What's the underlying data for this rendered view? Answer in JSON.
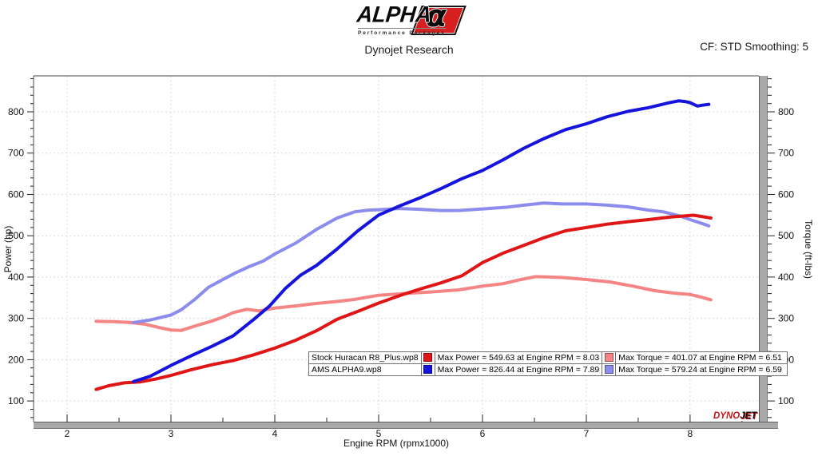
{
  "header": {
    "brand_name": "ALPHA",
    "brand_alpha_char": "α",
    "brand_tagline": "Performance Packages",
    "title": "Dynojet Research",
    "cf_label": "CF: STD Smoothing: 5"
  },
  "legend": {
    "rows": [
      {
        "name": "Stock Huracan R8_Plus.wp8",
        "power_color": "#e01515",
        "power_text": "Max Power = 549.63 at Engine RPM = 8.03",
        "torque_color": "#f58484",
        "torque_text": "Max Torque = 401.07 at Engine RPM = 6.51"
      },
      {
        "name": "AMS ALPHA9.wp8",
        "power_color": "#1414dd",
        "power_text": "Max Power = 826.44 at Engine RPM = 7.89",
        "torque_color": "#8c8cee",
        "torque_text": "Max Torque = 579.24 at Engine RPM = 6.59"
      }
    ]
  },
  "watermark": {
    "part1": "DYNO",
    "part2": "JET"
  },
  "chart_data": {
    "type": "line",
    "xlabel": "Engine RPM (rpmx1000)",
    "ylabel_left": "Power (hp)",
    "ylabel_right": "Torque (ft-lbs)",
    "x_ticks": [
      2,
      3,
      4,
      5,
      6,
      7,
      8
    ],
    "y_ticks": [
      100,
      200,
      300,
      400,
      500,
      600,
      700,
      800
    ],
    "x_minor_step": 0.5,
    "y_minor_step": 20,
    "xlim": [
      1.677,
      8.662
    ],
    "ylim": [
      50,
      887
    ],
    "grid": true,
    "legend_position": "bottom-center",
    "series": [
      {
        "name": "Stock Huracan R8_Plus.wp8 Torque (ft-lbs)",
        "color": "#f58484",
        "width": 4,
        "max": {
          "value": 401.07,
          "rpm": 6.51
        },
        "points": [
          [
            2.28,
            293
          ],
          [
            2.45,
            292
          ],
          [
            2.6,
            290
          ],
          [
            2.75,
            286
          ],
          [
            2.9,
            277
          ],
          [
            3.0,
            272
          ],
          [
            3.1,
            271
          ],
          [
            3.25,
            283
          ],
          [
            3.4,
            294
          ],
          [
            3.5,
            303
          ],
          [
            3.6,
            314
          ],
          [
            3.73,
            322
          ],
          [
            3.85,
            318
          ],
          [
            4.0,
            325
          ],
          [
            4.2,
            330
          ],
          [
            4.4,
            336
          ],
          [
            4.6,
            341
          ],
          [
            4.77,
            346
          ],
          [
            5.0,
            356
          ],
          [
            5.3,
            361
          ],
          [
            5.5,
            364
          ],
          [
            5.77,
            369
          ],
          [
            6.0,
            378
          ],
          [
            6.2,
            384
          ],
          [
            6.35,
            393
          ],
          [
            6.51,
            401
          ],
          [
            6.65,
            400
          ],
          [
            6.77,
            399
          ],
          [
            7.0,
            394
          ],
          [
            7.23,
            388
          ],
          [
            7.45,
            378
          ],
          [
            7.66,
            367
          ],
          [
            7.85,
            361
          ],
          [
            8.0,
            358
          ],
          [
            8.1,
            352
          ],
          [
            8.2,
            345
          ]
        ]
      },
      {
        "name": "AMS ALPHA9.wp8 Torque (ft-lbs)",
        "color": "#8c8cee",
        "width": 4,
        "max": {
          "value": 579.24,
          "rpm": 6.59
        },
        "points": [
          [
            2.64,
            290
          ],
          [
            2.8,
            296
          ],
          [
            2.9,
            302
          ],
          [
            3.0,
            308
          ],
          [
            3.1,
            321
          ],
          [
            3.23,
            346
          ],
          [
            3.36,
            375
          ],
          [
            3.5,
            394
          ],
          [
            3.62,
            410
          ],
          [
            3.75,
            425
          ],
          [
            3.89,
            439
          ],
          [
            4.0,
            456
          ],
          [
            4.2,
            482
          ],
          [
            4.4,
            515
          ],
          [
            4.6,
            543
          ],
          [
            4.77,
            558
          ],
          [
            4.9,
            562
          ],
          [
            5.0,
            563
          ],
          [
            5.2,
            566
          ],
          [
            5.4,
            564
          ],
          [
            5.6,
            561
          ],
          [
            5.77,
            561
          ],
          [
            6.0,
            565
          ],
          [
            6.23,
            569
          ],
          [
            6.4,
            574
          ],
          [
            6.59,
            579.2
          ],
          [
            6.77,
            577
          ],
          [
            7.0,
            577
          ],
          [
            7.2,
            574
          ],
          [
            7.4,
            570
          ],
          [
            7.6,
            562
          ],
          [
            7.74,
            558
          ],
          [
            7.9,
            548
          ],
          [
            8.0,
            539
          ],
          [
            8.1,
            531
          ],
          [
            8.18,
            524
          ]
        ]
      },
      {
        "name": "Stock Huracan R8_Plus.wp8 Power (hp)",
        "color": "#e01515",
        "width": 4,
        "max": {
          "value": 549.63,
          "rpm": 8.03
        },
        "points": [
          [
            2.28,
            128
          ],
          [
            2.4,
            137
          ],
          [
            2.55,
            144
          ],
          [
            2.7,
            146
          ],
          [
            2.85,
            153
          ],
          [
            3.0,
            162
          ],
          [
            3.2,
            176
          ],
          [
            3.4,
            188
          ],
          [
            3.6,
            198
          ],
          [
            3.8,
            212
          ],
          [
            4.0,
            228
          ],
          [
            4.2,
            247
          ],
          [
            4.4,
            270
          ],
          [
            4.6,
            298
          ],
          [
            4.8,
            317
          ],
          [
            5.0,
            337
          ],
          [
            5.2,
            355
          ],
          [
            5.4,
            371
          ],
          [
            5.6,
            386
          ],
          [
            5.8,
            403
          ],
          [
            6.0,
            435
          ],
          [
            6.2,
            458
          ],
          [
            6.4,
            477
          ],
          [
            6.6,
            496
          ],
          [
            6.8,
            512
          ],
          [
            7.0,
            520
          ],
          [
            7.2,
            528
          ],
          [
            7.4,
            534
          ],
          [
            7.6,
            539
          ],
          [
            7.8,
            545
          ],
          [
            7.9,
            547
          ],
          [
            8.03,
            549.6
          ],
          [
            8.1,
            547
          ],
          [
            8.2,
            543
          ]
        ]
      },
      {
        "name": "AMS ALPHA9.wp8 Power (hp)",
        "color": "#1414dd",
        "width": 4,
        "max": {
          "value": 826.44,
          "rpm": 7.89
        },
        "points": [
          [
            2.64,
            147
          ],
          [
            2.8,
            160
          ],
          [
            3.0,
            186
          ],
          [
            3.2,
            210
          ],
          [
            3.4,
            233
          ],
          [
            3.6,
            258
          ],
          [
            3.8,
            298
          ],
          [
            3.95,
            330
          ],
          [
            4.1,
            372
          ],
          [
            4.25,
            405
          ],
          [
            4.4,
            428
          ],
          [
            4.6,
            468
          ],
          [
            4.8,
            512
          ],
          [
            5.0,
            550
          ],
          [
            5.2,
            572
          ],
          [
            5.4,
            592
          ],
          [
            5.6,
            614
          ],
          [
            5.8,
            638
          ],
          [
            6.0,
            658
          ],
          [
            6.2,
            684
          ],
          [
            6.4,
            712
          ],
          [
            6.6,
            736
          ],
          [
            6.8,
            757
          ],
          [
            7.0,
            771
          ],
          [
            7.2,
            788
          ],
          [
            7.4,
            801
          ],
          [
            7.6,
            810
          ],
          [
            7.8,
            822
          ],
          [
            7.89,
            826.4
          ],
          [
            7.95,
            825
          ],
          [
            8.0,
            822
          ],
          [
            8.07,
            814
          ],
          [
            8.12,
            816
          ],
          [
            8.18,
            818
          ]
        ]
      }
    ]
  }
}
